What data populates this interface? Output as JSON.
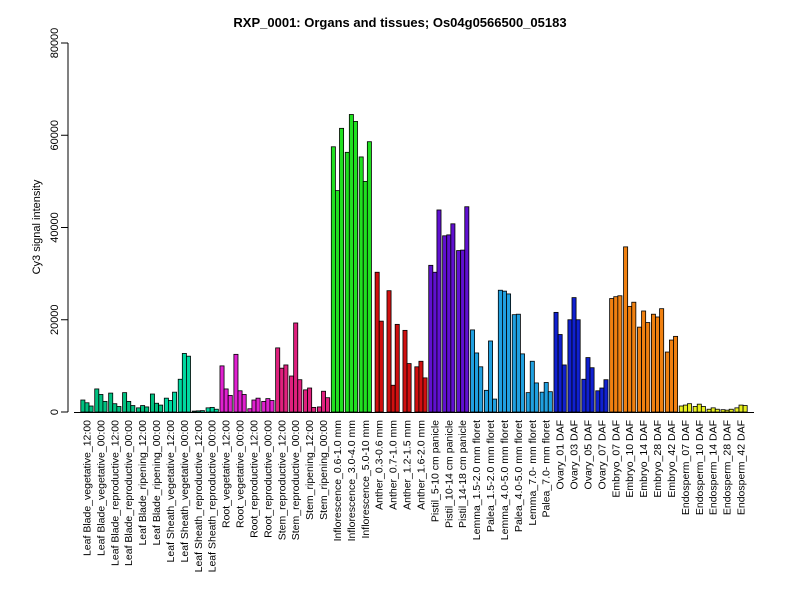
{
  "chart_data": {
    "type": "bar",
    "title": "RXP_0001: Organs and tissues; Os04g0566500_05183",
    "xlabel": "",
    "ylabel": "Cy3 signal intensity",
    "ylim": [
      0,
      80000
    ],
    "yticks": [
      0,
      20000,
      40000,
      60000,
      80000
    ],
    "grid": false,
    "legend": "none",
    "groups": [
      {
        "label": "Leaf Blade_vegetative_12:00",
        "color": "#00C080",
        "values": [
          2600,
          2000,
          1300
        ]
      },
      {
        "label": "Leaf Blade_vegetative_00:00",
        "color": "#00C080",
        "values": [
          5000,
          3800,
          2300
        ]
      },
      {
        "label": "Leaf Blade_reproductive_12:00",
        "color": "#00C080",
        "values": [
          4100,
          1800,
          1200
        ]
      },
      {
        "label": "Leaf Blade_reproductive_00:00",
        "color": "#00C080",
        "values": [
          4200,
          2300,
          1400
        ]
      },
      {
        "label": "Leaf Blade_ripening_12:00",
        "color": "#00C080",
        "values": [
          900,
          1400,
          1100
        ]
      },
      {
        "label": "Leaf Blade_ripening_00:00",
        "color": "#00C080",
        "values": [
          3900,
          1900,
          1500
        ]
      },
      {
        "label": "Leaf Sheath_vegetative_12:00",
        "color": "#00D8A0",
        "values": [
          3000,
          2500,
          4300
        ]
      },
      {
        "label": "Leaf Sheath_vegetative_00:00",
        "color": "#00D8A0",
        "values": [
          7100,
          12700,
          12100
        ]
      },
      {
        "label": "Leaf Sheath_reproductive_12:00",
        "color": "#00D8A0",
        "values": [
          200,
          250,
          300
        ]
      },
      {
        "label": "Leaf Sheath_reproductive_00:00",
        "color": "#00D8A0",
        "values": [
          900,
          1000,
          600
        ]
      },
      {
        "label": "Root_vegetative_12:00",
        "color": "#E020D0",
        "values": [
          10000,
          5000,
          3600
        ]
      },
      {
        "label": "Root_vegetative_00:00",
        "color": "#E020D0",
        "values": [
          12500,
          4600,
          3800
        ]
      },
      {
        "label": "Root_reproductive_12:00",
        "color": "#E020D0",
        "values": [
          700,
          2600,
          3000
        ]
      },
      {
        "label": "Root_reproductive_00:00",
        "color": "#E020D0",
        "values": [
          2300,
          2900,
          2500
        ]
      },
      {
        "label": "Stem_reproductive_12:00",
        "color": "#E0207E",
        "values": [
          13900,
          9500,
          10200
        ]
      },
      {
        "label": "Stem_reproductive_00:00",
        "color": "#E0207E",
        "values": [
          7800,
          19300,
          7000
        ]
      },
      {
        "label": "Stem_ripening_12:00",
        "color": "#E0207E",
        "values": [
          4800,
          5200,
          1000
        ]
      },
      {
        "label": "Stem_ripening_00:00",
        "color": "#E0207E",
        "values": [
          1100,
          4500,
          3100
        ]
      },
      {
        "label": "Inflorescence_0.6-1.0 mm",
        "color": "#20E020",
        "values": [
          57500,
          48000,
          61500
        ]
      },
      {
        "label": "Inflorescence_3.0-4.0 mm",
        "color": "#20E020",
        "values": [
          56300,
          64500,
          63000
        ]
      },
      {
        "label": "Inflorescence_5.0-10 mm",
        "color": "#20E020",
        "values": [
          55300,
          50000,
          58600
        ]
      },
      {
        "label": "Anther_0.3-0.6 mm",
        "color": "#D01010",
        "values": [
          30300,
          19700
        ]
      },
      {
        "label": "Anther_0.7-1.0 mm",
        "color": "#D01010",
        "values": [
          26300,
          5800,
          19000
        ]
      },
      {
        "label": "Anther_1.2-1.5 mm",
        "color": "#D01010",
        "values": [
          17700,
          10500
        ]
      },
      {
        "label": "Anther_1.6-2.0 mm",
        "color": "#D01010",
        "values": [
          9800,
          11000,
          7400
        ]
      },
      {
        "label": "Pistil_5-10 cm panicle",
        "color": "#6010D0",
        "values": [
          31800,
          30300,
          43800
        ]
      },
      {
        "label": "Pistil_10-14 cm panicle",
        "color": "#6010D0",
        "values": [
          38200,
          38400,
          40800
        ]
      },
      {
        "label": "Pistil_14-18 cm panicle",
        "color": "#6010D0",
        "values": [
          35000,
          35100,
          44500
        ]
      },
      {
        "label": "Lemma_1.5-2.0 mm floret",
        "color": "#20A0E0",
        "values": [
          17800,
          12800,
          9800
        ]
      },
      {
        "label": "Palea_1.5-2.0 mm floret",
        "color": "#20A0E0",
        "values": [
          4700,
          15400,
          2800
        ]
      },
      {
        "label": "Lemma_4.0-5.0 mm floret",
        "color": "#20A0E0",
        "values": [
          26400,
          26200,
          25600
        ]
      },
      {
        "label": "Palea_4.0-5.0 mm floret",
        "color": "#20A0E0",
        "values": [
          21100,
          21200,
          12600
        ]
      },
      {
        "label": "Lemma_7.0- mm floret",
        "color": "#20A0E0",
        "values": [
          4200,
          11000,
          6300
        ]
      },
      {
        "label": "Palea_7.0- mm floret",
        "color": "#20A0E0",
        "values": [
          4300,
          6400,
          4400
        ]
      },
      {
        "label": "Ovary_01 DAF",
        "color": "#1020D0",
        "values": [
          21600,
          16800,
          10200
        ]
      },
      {
        "label": "Ovary_03 DAF",
        "color": "#1020D0",
        "values": [
          20000,
          24800,
          20000
        ]
      },
      {
        "label": "Ovary_05 DAF",
        "color": "#1020D0",
        "values": [
          7100,
          11800,
          9600
        ]
      },
      {
        "label": "Ovary_07 DAF",
        "color": "#1020D0",
        "values": [
          4600,
          5200,
          7000
        ]
      },
      {
        "label": "Embryo_07 DAF",
        "color": "#F08010",
        "values": [
          24600,
          25000,
          25200
        ]
      },
      {
        "label": "Embryo_10 DAF",
        "color": "#F08010",
        "values": [
          35800,
          22900,
          23800
        ]
      },
      {
        "label": "Embryo_14 DAF",
        "color": "#F08010",
        "values": [
          18400,
          21900,
          19400
        ]
      },
      {
        "label": "Embryo_28 DAF",
        "color": "#F08010",
        "values": [
          21200,
          20600,
          22400
        ]
      },
      {
        "label": "Embryo_42 DAF",
        "color": "#F08010",
        "values": [
          13000,
          15600,
          16400
        ]
      },
      {
        "label": "Endosperm_07 DAF",
        "color": "#E8F020",
        "values": [
          1300,
          1500,
          1800
        ]
      },
      {
        "label": "Endosperm_10 DAF",
        "color": "#E8F020",
        "values": [
          1200,
          1700,
          1200
        ]
      },
      {
        "label": "Endosperm_14 DAF",
        "color": "#E8F020",
        "values": [
          600,
          900,
          600
        ]
      },
      {
        "label": "Endosperm_28 DAF",
        "color": "#E8F020",
        "values": [
          500,
          400,
          600
        ]
      },
      {
        "label": "Endosperm_42 DAF",
        "color": "#E8F020",
        "values": [
          900,
          1500,
          1400
        ]
      }
    ]
  }
}
